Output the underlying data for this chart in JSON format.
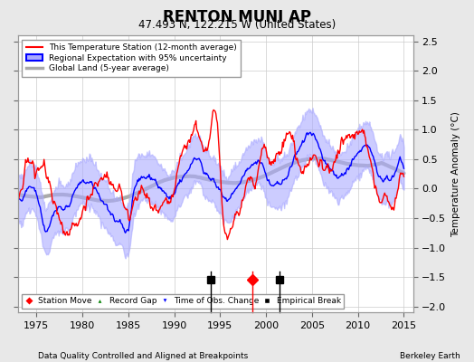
{
  "title": "RENTON MUNI AP",
  "subtitle": "47.493 N, 122.215 W (United States)",
  "xlabel_left": "Data Quality Controlled and Aligned at Breakpoints",
  "xlabel_right": "Berkeley Earth",
  "ylabel": "Temperature Anomaly (°C)",
  "xlim": [
    1973,
    2016
  ],
  "ylim": [
    -2.1,
    2.6
  ],
  "yticks": [
    -2,
    -1.5,
    -1,
    -0.5,
    0,
    0.5,
    1,
    1.5,
    2,
    2.5
  ],
  "xticks": [
    1975,
    1980,
    1985,
    1990,
    1995,
    2000,
    2005,
    2010,
    2015
  ],
  "background_color": "#e8e8e8",
  "plot_bg_color": "#ffffff",
  "grid_color": "#cccccc",
  "station_color": "#ff0000",
  "regional_color": "#0000ff",
  "regional_fill_color": "#aaaaff",
  "global_color": "#aaaaaa",
  "legend_labels": [
    "This Temperature Station (12-month average)",
    "Regional Expectation with 95% uncertainty",
    "Global Land (5-year average)"
  ],
  "marker_events": {
    "empirical_breaks": [
      1994.0,
      2001.5
    ],
    "station_moves": [
      1998.5
    ],
    "time_of_obs": [],
    "record_gaps": []
  },
  "marker_y": -1.55
}
